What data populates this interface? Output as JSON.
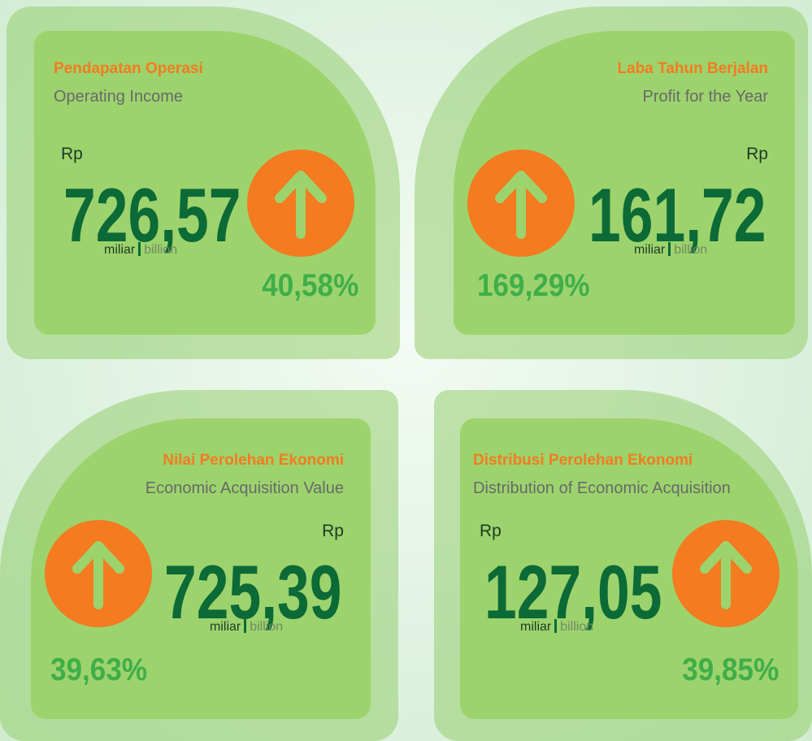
{
  "cards": [
    {
      "title_id": "Pendapatan Operasi",
      "title_en": "Operating Income",
      "currency": "Rp",
      "value": "726,57",
      "unit_id": "miliar",
      "unit_en": "billion",
      "change": "40,58%"
    },
    {
      "title_id": "Laba Tahun Berjalan",
      "title_en": "Profit for the Year",
      "currency": "Rp",
      "value": "161,72",
      "unit_id": "miliar",
      "unit_en": "billion",
      "change": "169,29%"
    },
    {
      "title_id": "Nilai Perolehan Ekonomi",
      "title_en": "Economic Acquisition Value",
      "currency": "Rp",
      "value": "725,39",
      "unit_id": "miliar",
      "unit_en": "billion",
      "change": "39,63%"
    },
    {
      "title_id": "Distribusi Perolehan Ekonomi",
      "title_en": "Distribution of Economic Acquisition",
      "currency": "Rp",
      "value": "127,05",
      "unit_id": "miliar",
      "unit_en": "billion",
      "change": "39,85%"
    }
  ]
}
